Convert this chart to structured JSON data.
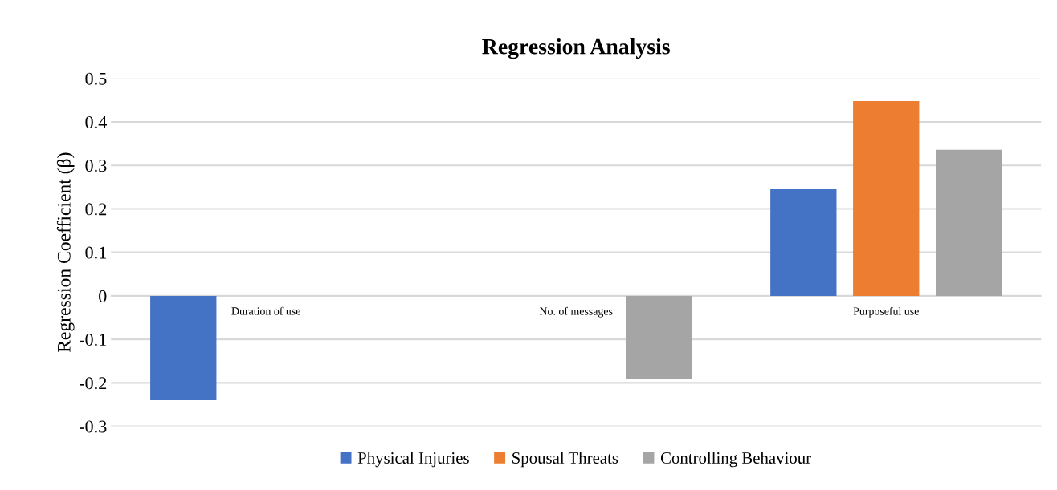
{
  "chart_data": {
    "type": "bar",
    "title": "Regression Analysis",
    "ylabel": "Regression Coefficient (β)",
    "categories": [
      "Duration of use",
      "No. of messages",
      "Purposeful use"
    ],
    "series": [
      {
        "name": "Physical Injuries",
        "color": "#4472c4",
        "values": [
          -0.24,
          null,
          0.245
        ]
      },
      {
        "name": "Spousal Threats",
        "color": "#ed7d31",
        "values": [
          null,
          null,
          0.448
        ]
      },
      {
        "name": "Controlling Behaviour",
        "color": "#a5a5a5",
        "values": [
          null,
          -0.19,
          0.336
        ]
      }
    ],
    "ylim": [
      -0.3,
      0.5
    ],
    "yticks": [
      -0.3,
      -0.2,
      -0.1,
      0,
      0.1,
      0.2,
      0.3,
      0.4,
      0.5
    ],
    "grid": "y",
    "legend": "bottom"
  }
}
